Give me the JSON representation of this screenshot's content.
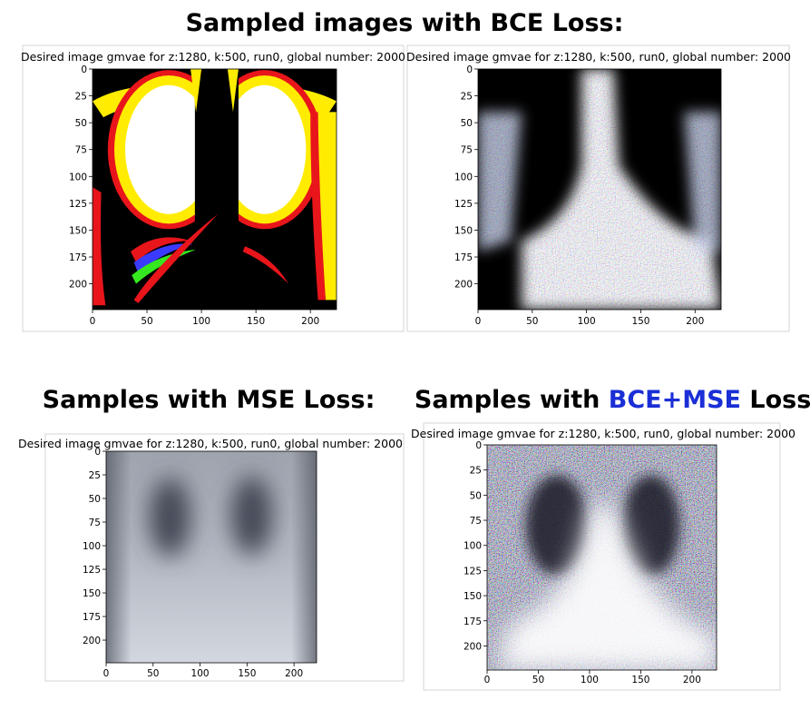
{
  "headings": {
    "bce": "Sampled images with BCE Loss:",
    "mse": "Samples with MSE Loss:",
    "combined": {
      "before": "Samples with ",
      "highlight": "BCE+MSE",
      "after": " Loss:"
    }
  },
  "panels": [
    {
      "title": "Desired image gmvae for z:1280, k:500, run0, global number: 2000",
      "xlim": [
        0,
        224
      ],
      "ylim": [
        0,
        224
      ],
      "xticks": [
        0,
        50,
        100,
        150,
        200
      ],
      "yticks": [
        0,
        25,
        50,
        75,
        100,
        125,
        150,
        175,
        200
      ]
    },
    {
      "title": "Desired image gmvae for z:1280, k:500, run0, global number: 2000",
      "xlim": [
        0,
        224
      ],
      "ylim": [
        0,
        224
      ],
      "xticks": [
        0,
        50,
        100,
        150,
        200
      ],
      "yticks": [
        0,
        25,
        50,
        75,
        100,
        125,
        150,
        175,
        200
      ]
    },
    {
      "title": "Desired image gmvae for z:1280, k:500, run0, global number: 2000",
      "xlim": [
        0,
        224
      ],
      "ylim": [
        0,
        224
      ],
      "xticks": [
        0,
        50,
        100,
        150,
        200
      ],
      "yticks": [
        0,
        25,
        50,
        75,
        100,
        125,
        150,
        175,
        200
      ]
    },
    {
      "title": "Desired image gmvae for z:1280, k:500, run0, global number: 2000",
      "xlim": [
        0,
        224
      ],
      "ylim": [
        0,
        224
      ],
      "xticks": [
        0,
        50,
        100,
        150,
        200
      ],
      "yticks": [
        0,
        25,
        50,
        75,
        100,
        125,
        150,
        175,
        200
      ]
    }
  ]
}
